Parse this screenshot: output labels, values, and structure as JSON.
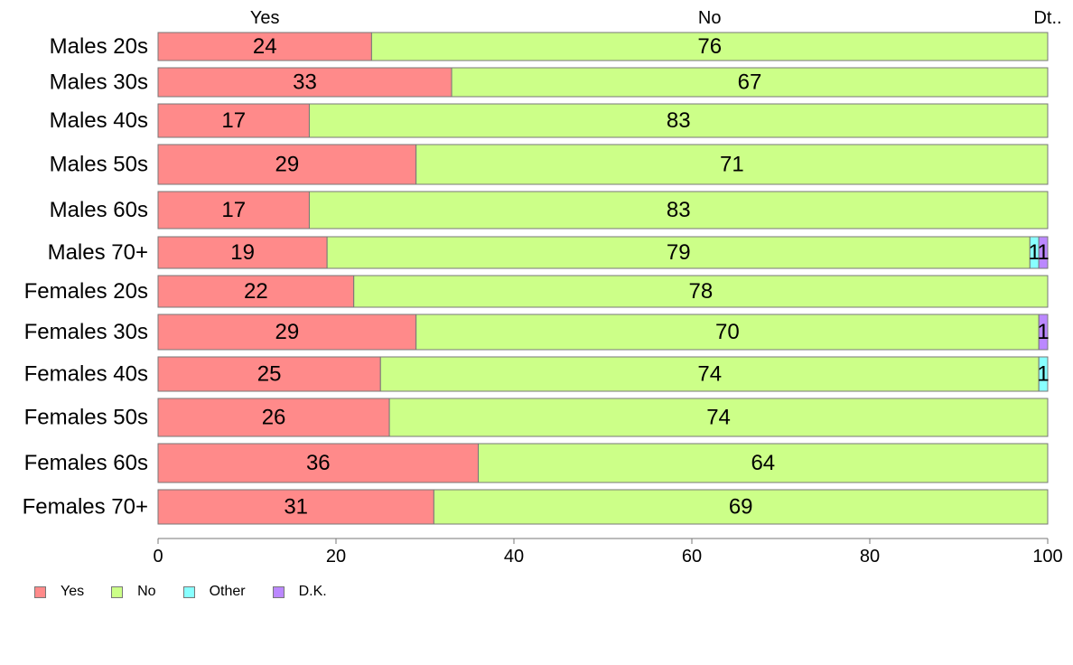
{
  "chart_data": {
    "type": "bar",
    "orientation": "horizontal",
    "stacked": true,
    "categories": [
      "Males 20s",
      "Males 30s",
      "Males 40s",
      "Males 50s",
      "Males 60s",
      "Males 70+",
      "Females 20s",
      "Females 30s",
      "Females 40s",
      "Females 50s",
      "Females 60s",
      "Females 70+"
    ],
    "series": [
      {
        "name": "Yes",
        "color": "#ff8a8a",
        "values": [
          24,
          33,
          17,
          29,
          17,
          19,
          22,
          29,
          25,
          26,
          36,
          31
        ]
      },
      {
        "name": "No",
        "color": "#ccff88",
        "values": [
          76,
          67,
          83,
          71,
          83,
          79,
          78,
          70,
          74,
          74,
          64,
          69
        ]
      },
      {
        "name": "Other",
        "color": "#88ffff",
        "values": [
          0,
          0,
          0,
          0,
          0,
          1,
          0,
          0,
          1,
          0,
          0,
          0
        ]
      },
      {
        "name": "D.K.",
        "color": "#bb88ff",
        "values": [
          0,
          0,
          0,
          0,
          0,
          1,
          0,
          1,
          0,
          0,
          0,
          0
        ]
      }
    ],
    "top_labels": [
      "Yes",
      "No",
      "Dt.."
    ],
    "xlim": [
      0,
      100
    ],
    "xticks": [
      0,
      20,
      40,
      60,
      80,
      100
    ],
    "legend_position": "bottom-left",
    "grid": false
  }
}
